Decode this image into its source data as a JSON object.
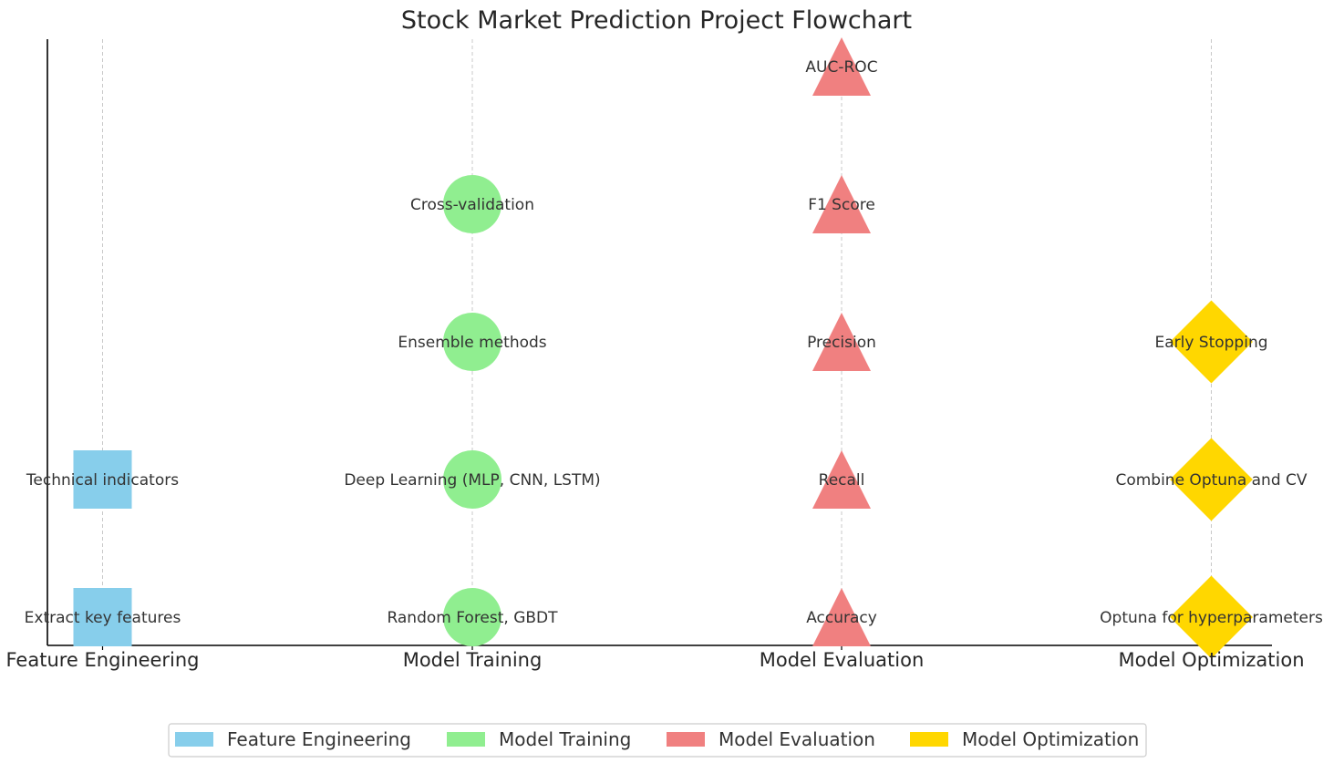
{
  "chart_data": {
    "type": "scatter",
    "title": "Stock Market Prediction Project Flowchart",
    "categories": [
      "Feature Engineering",
      "Model Training",
      "Model Evaluation",
      "Model Optimization"
    ],
    "grid": "vertical dashed",
    "legend_position": "bottom-center",
    "series": [
      {
        "name": "Feature Engineering",
        "color": "#87CEEB",
        "marker": "square",
        "points": [
          {
            "x": "Feature Engineering",
            "y": 0,
            "label": "Extract key features"
          },
          {
            "x": "Feature Engineering",
            "y": 1,
            "label": "Technical indicators"
          }
        ]
      },
      {
        "name": "Model Training",
        "color": "#90EE90",
        "marker": "circle",
        "points": [
          {
            "x": "Model Training",
            "y": 0,
            "label": "Random Forest, GBDT"
          },
          {
            "x": "Model Training",
            "y": 1,
            "label": "Deep Learning (MLP, CNN, LSTM)"
          },
          {
            "x": "Model Training",
            "y": 2,
            "label": "Ensemble methods"
          },
          {
            "x": "Model Training",
            "y": 3,
            "label": "Cross-validation"
          }
        ]
      },
      {
        "name": "Model Evaluation",
        "color": "#F08080",
        "marker": "triangle",
        "points": [
          {
            "x": "Model Evaluation",
            "y": 0,
            "label": "Accuracy"
          },
          {
            "x": "Model Evaluation",
            "y": 1,
            "label": "Recall"
          },
          {
            "x": "Model Evaluation",
            "y": 2,
            "label": "Precision"
          },
          {
            "x": "Model Evaluation",
            "y": 3,
            "label": "F1 Score"
          },
          {
            "x": "Model Evaluation",
            "y": 4,
            "label": "AUC-ROC"
          }
        ]
      },
      {
        "name": "Model Optimization",
        "color": "#FFD700",
        "marker": "diamond",
        "points": [
          {
            "x": "Model Optimization",
            "y": 0,
            "label": "Optuna for hyperparameters"
          },
          {
            "x": "Model Optimization",
            "y": 1,
            "label": "Combine Optuna and CV"
          },
          {
            "x": "Model Optimization",
            "y": 2,
            "label": "Early Stopping"
          }
        ]
      }
    ]
  }
}
